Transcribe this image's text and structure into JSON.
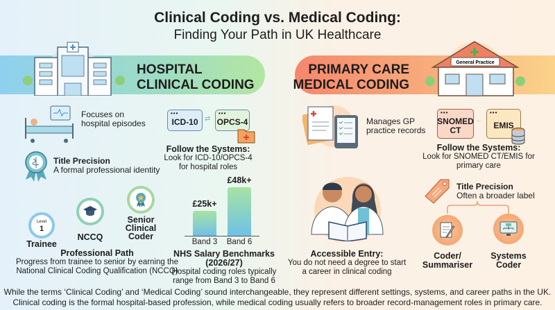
{
  "title": {
    "line1": "Clinical Coding vs. Medical Coding:",
    "line2": "Finding Your Path in UK Healthcare"
  },
  "left": {
    "banner": {
      "line1": "HOSPITAL",
      "line2": "CLINICAL CODING"
    },
    "focus": {
      "line1": "Focuses on",
      "line2": "hospital episodes"
    },
    "title_precision": {
      "heading": "Title Precision",
      "text": "A formal professional identity"
    },
    "systems": {
      "box1": "ICD-10",
      "box2": "OPCS-4",
      "heading": "Follow the Systems:",
      "line1": "Look for ICD-10/OPCS-4",
      "line2": "for hospital roles"
    },
    "path": {
      "level_small": "Level",
      "level_num": "1",
      "steps": [
        "Trainee",
        "NCCQ",
        "Senior Clinical Coder"
      ],
      "senior_lines": [
        "Senior",
        "Clinical",
        "Coder"
      ],
      "heading": "Professional Path",
      "line1": "Progress from trainee to senior by earning the",
      "line2": "National Clinical Coding Qualification (NCCQ)"
    },
    "salary": {
      "bars": [
        {
          "label": "Band 3",
          "value_label": "£25k+",
          "value": 25
        },
        {
          "label": "Band 6",
          "value_label": "£48k+",
          "value": 48
        }
      ],
      "max": 55,
      "heading": "NHS Salary Benchmarks (2026/27)",
      "line1": "Hospital coding roles typically",
      "line2": "range from Band 3 to Band 6"
    }
  },
  "right": {
    "banner": {
      "line1": "PRIMARY CARE",
      "line2": "MEDICAL CODING",
      "sign": "General Practice"
    },
    "manages": {
      "line1": "Manages GP",
      "line2": "practice records"
    },
    "systems": {
      "box1_l1": "SNOMED",
      "box1_l2": "CT",
      "box2": "EMIS",
      "heading": "Follow the Systems:",
      "line1": "Look for SNOMED CT/EMIS for",
      "line2": "primary care"
    },
    "entry": {
      "heading": "Accessible Entry:",
      "line1": "You do not need a degree to start",
      "line2": "a career in clinical coding"
    },
    "title_precision": {
      "heading": "Title Precision",
      "text": "Often a broader label"
    },
    "roles": [
      {
        "l1": "Coder/",
        "l2": "Summariser"
      },
      {
        "l1": "Systems",
        "l2": "Coder"
      }
    ]
  },
  "footer": {
    "line1": "While the terms ‘Clinical Coding’ and ‘Medical Coding’ sound interchangeable, they represent different settings, systems, and career paths in the UK.",
    "line2": "Clinical coding is the formal hospital-based profession, while medical coding usually refers to broader record-management roles in primary care."
  },
  "colors": {
    "blue": "#6fc1e6",
    "green": "#a7e3a3",
    "orange": "#f5876c",
    "yellow": "#fbd38a"
  }
}
